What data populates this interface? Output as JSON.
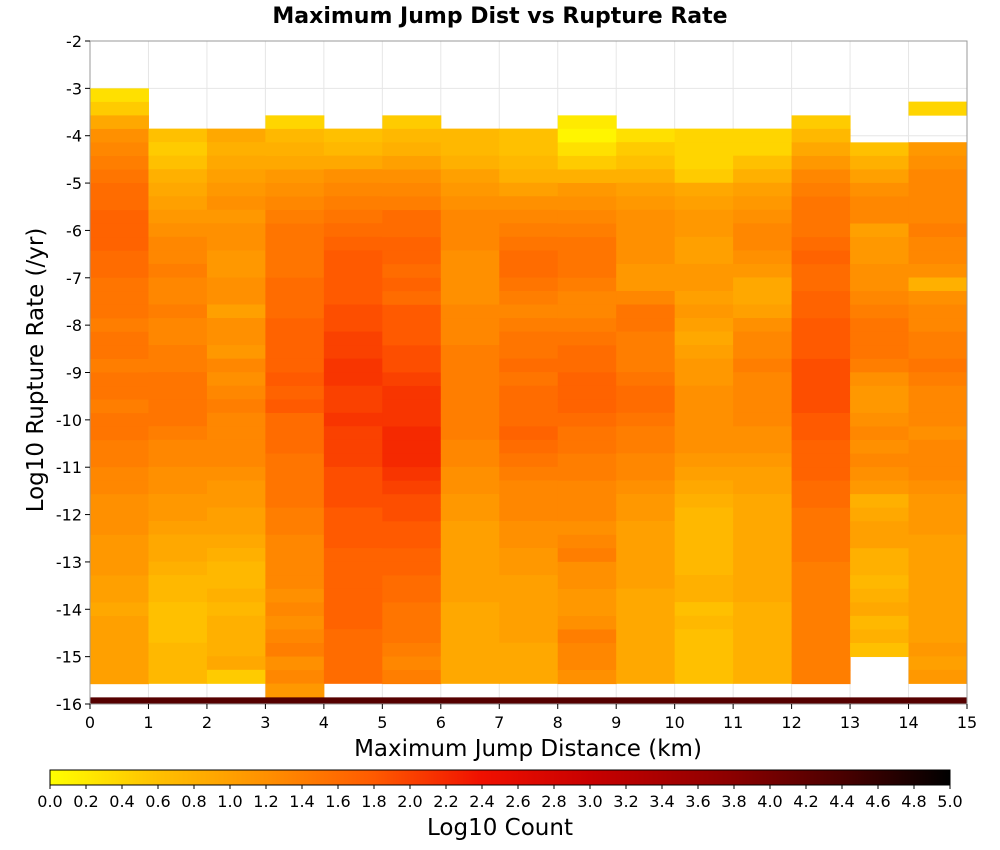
{
  "chart_data": {
    "type": "heatmap",
    "title": "Maximum Jump Dist vs Rupture Rate",
    "xlabel": "Maximum Jump Distance (km)",
    "ylabel": "Log10 Rupture Rate (/yr)",
    "xlim": [
      0,
      15
    ],
    "ylim": [
      -16,
      -2
    ],
    "x_ticks": [
      "0",
      "1",
      "2",
      "3",
      "4",
      "5",
      "6",
      "7",
      "8",
      "9",
      "10",
      "11",
      "12",
      "13",
      "14",
      "15"
    ],
    "y_ticks": [
      "-2",
      "-3",
      "-4",
      "-5",
      "-6",
      "-7",
      "-8",
      "-9",
      "-10",
      "-11",
      "-12",
      "-13",
      "-14",
      "-15",
      "-16"
    ],
    "x_bin_width": 1,
    "y_bin_width": 0.2857,
    "x_bin_starts": [
      0,
      1,
      2,
      3,
      4,
      5,
      6,
      7,
      8,
      9,
      10,
      11,
      12,
      13,
      14
    ],
    "columns": [
      {
        "x": 0,
        "y_top": -3.0,
        "values": [
          0.3,
          0.5,
          0.9,
          1.2,
          1.3,
          1.4,
          1.5,
          1.6,
          1.6,
          1.7,
          1.7,
          1.7,
          1.6,
          1.6,
          1.5,
          1.5,
          1.5,
          1.4,
          1.5,
          1.5,
          1.4,
          1.5,
          1.5,
          1.4,
          1.5,
          1.5,
          1.4,
          1.4,
          1.3,
          1.3,
          1.2,
          1.2,
          1.2,
          1.1,
          1.1,
          1.1,
          1.0,
          1.0,
          0.9,
          1.0,
          1.0,
          1.0,
          1.0,
          1.0
        ]
      },
      {
        "x": 1,
        "y_top": -3.85,
        "values": [
          0.6,
          0.5,
          0.6,
          0.8,
          0.9,
          1.0,
          1.1,
          1.2,
          1.3,
          1.3,
          1.4,
          1.3,
          1.3,
          1.4,
          1.3,
          1.3,
          1.4,
          1.4,
          1.5,
          1.5,
          1.5,
          1.5,
          1.4,
          1.3,
          1.3,
          1.2,
          1.2,
          1.1,
          1.1,
          1.0,
          0.9,
          0.9,
          0.8,
          0.7,
          0.7,
          0.6,
          0.6,
          0.6,
          0.7,
          0.7,
          0.7
        ]
      },
      {
        "x": 2,
        "y_top": -3.85,
        "values": [
          0.9,
          0.8,
          0.9,
          1.0,
          1.1,
          1.2,
          1.1,
          1.2,
          1.2,
          1.1,
          1.1,
          1.2,
          1.2,
          1.0,
          1.2,
          1.2,
          1.1,
          1.3,
          1.2,
          1.3,
          1.4,
          1.3,
          1.3,
          1.3,
          1.3,
          1.2,
          1.1,
          1.1,
          1.0,
          1.0,
          0.9,
          0.8,
          0.7,
          0.7,
          0.8,
          0.7,
          0.8,
          0.8,
          0.8,
          0.9,
          0.5
        ]
      },
      {
        "x": 3,
        "y_top": -3.57,
        "values": [
          0.4,
          0.7,
          0.8,
          0.9,
          1.1,
          1.2,
          1.3,
          1.4,
          1.5,
          1.5,
          1.5,
          1.5,
          1.6,
          1.6,
          1.6,
          1.7,
          1.7,
          1.7,
          1.7,
          1.8,
          1.7,
          1.8,
          1.6,
          1.6,
          1.6,
          1.5,
          1.5,
          1.5,
          1.5,
          1.4,
          1.4,
          1.3,
          1.3,
          1.3,
          1.3,
          1.2,
          1.3,
          1.2,
          1.3,
          1.4,
          1.2,
          1.3,
          1.1
        ]
      },
      {
        "x": 4,
        "y_top": -3.85,
        "values": [
          0.6,
          0.7,
          0.9,
          1.2,
          1.3,
          1.4,
          1.5,
          1.6,
          1.7,
          1.8,
          1.8,
          1.8,
          1.8,
          1.9,
          1.9,
          2.0,
          2.0,
          2.1,
          2.1,
          2.0,
          2.0,
          2.1,
          2.0,
          2.0,
          2.0,
          1.9,
          1.9,
          1.9,
          1.8,
          1.8,
          1.8,
          1.7,
          1.7,
          1.7,
          1.7,
          1.7,
          1.7,
          1.6,
          1.6,
          1.6,
          1.6
        ]
      },
      {
        "x": 5,
        "y_top": -3.57,
        "values": [
          0.5,
          0.7,
          0.8,
          1.0,
          1.2,
          1.3,
          1.4,
          1.6,
          1.6,
          1.7,
          1.7,
          1.6,
          1.7,
          1.6,
          1.8,
          1.8,
          1.8,
          1.9,
          1.9,
          2.0,
          2.1,
          2.1,
          2.1,
          2.2,
          2.2,
          2.2,
          2.1,
          2.0,
          1.9,
          1.9,
          1.8,
          1.8,
          1.7,
          1.7,
          1.6,
          1.6,
          1.5,
          1.5,
          1.5,
          1.4,
          1.3,
          1.4
        ]
      },
      {
        "x": 6,
        "y_top": -3.85,
        "values": [
          0.7,
          0.7,
          0.8,
          1.0,
          1.1,
          1.2,
          1.3,
          1.3,
          1.3,
          1.2,
          1.2,
          1.2,
          1.2,
          1.3,
          1.3,
          1.3,
          1.4,
          1.4,
          1.4,
          1.4,
          1.4,
          1.4,
          1.4,
          1.3,
          1.3,
          1.2,
          1.2,
          1.1,
          1.1,
          1.0,
          1.0,
          1.0,
          1.0,
          1.0,
          1.0,
          0.9,
          0.9,
          0.9,
          0.9,
          0.9,
          0.9
        ]
      },
      {
        "x": 7,
        "y_top": -3.85,
        "values": [
          0.6,
          0.6,
          0.7,
          0.8,
          1.0,
          1.2,
          1.3,
          1.4,
          1.5,
          1.6,
          1.6,
          1.5,
          1.4,
          1.3,
          1.4,
          1.5,
          1.5,
          1.6,
          1.5,
          1.6,
          1.6,
          1.6,
          1.7,
          1.6,
          1.5,
          1.4,
          1.3,
          1.3,
          1.3,
          1.2,
          1.2,
          1.1,
          1.1,
          1.0,
          1.0,
          1.0,
          1.0,
          1.0,
          0.9,
          0.9,
          0.9
        ]
      },
      {
        "x": 8,
        "y_top": -3.57,
        "values": [
          0.2,
          0.1,
          0.3,
          0.5,
          0.8,
          1.1,
          1.2,
          1.3,
          1.4,
          1.5,
          1.5,
          1.5,
          1.4,
          1.3,
          1.3,
          1.4,
          1.5,
          1.6,
          1.6,
          1.7,
          1.7,
          1.7,
          1.6,
          1.5,
          1.5,
          1.4,
          1.4,
          1.3,
          1.3,
          1.3,
          1.2,
          1.3,
          1.4,
          1.2,
          1.2,
          1.1,
          1.1,
          1.2,
          1.4,
          1.3,
          1.3,
          1.2
        ]
      },
      {
        "x": 9,
        "y_top": -3.85,
        "values": [
          0.3,
          0.5,
          0.6,
          0.8,
          1.0,
          1.1,
          1.2,
          1.2,
          1.2,
          1.2,
          1.1,
          1.1,
          1.3,
          1.5,
          1.5,
          1.4,
          1.4,
          1.4,
          1.5,
          1.6,
          1.6,
          1.5,
          1.4,
          1.4,
          1.3,
          1.3,
          1.2,
          1.1,
          1.1,
          1.0,
          1.0,
          1.0,
          1.0,
          1.0,
          0.9,
          0.9,
          0.9,
          0.9,
          0.9,
          0.9,
          0.9
        ]
      },
      {
        "x": 10,
        "y_top": -3.85,
        "values": [
          0.4,
          0.4,
          0.4,
          0.5,
          0.9,
          1.0,
          1.1,
          1.1,
          1.0,
          1.0,
          1.1,
          1.1,
          1.0,
          1.1,
          1.0,
          0.9,
          1.0,
          1.1,
          1.1,
          1.2,
          1.2,
          1.2,
          1.2,
          1.2,
          1.1,
          1.0,
          0.9,
          0.8,
          0.7,
          0.7,
          0.7,
          0.7,
          0.7,
          0.8,
          0.8,
          0.6,
          0.7,
          0.6,
          0.6,
          0.6,
          0.6
        ]
      },
      {
        "x": 11,
        "y_top": -3.85,
        "values": [
          0.4,
          0.4,
          0.6,
          0.8,
          1.0,
          1.1,
          1.2,
          1.3,
          1.3,
          1.2,
          1.1,
          0.9,
          0.9,
          1.0,
          1.2,
          1.3,
          1.3,
          1.4,
          1.3,
          1.3,
          1.3,
          1.3,
          1.2,
          1.2,
          1.1,
          1.0,
          1.0,
          0.9,
          0.9,
          0.9,
          0.9,
          0.9,
          0.9,
          0.9,
          0.9,
          0.8,
          0.8,
          0.8,
          0.8,
          0.8,
          0.8
        ]
      },
      {
        "x": 12,
        "y_top": -3.57,
        "values": [
          0.5,
          0.7,
          0.9,
          1.1,
          1.3,
          1.4,
          1.5,
          1.5,
          1.5,
          1.6,
          1.7,
          1.6,
          1.6,
          1.7,
          1.7,
          1.8,
          1.8,
          1.8,
          1.9,
          1.9,
          1.9,
          1.9,
          1.8,
          1.8,
          1.7,
          1.7,
          1.7,
          1.6,
          1.6,
          1.5,
          1.5,
          1.5,
          1.5,
          1.4,
          1.4,
          1.4,
          1.4,
          1.4,
          1.4,
          1.4,
          1.4,
          1.4
        ]
      },
      {
        "x": 13,
        "y_top": -4.14,
        "values": [
          0.6,
          0.8,
          1.0,
          1.2,
          1.3,
          1.3,
          1.0,
          1.1,
          1.1,
          1.2,
          1.2,
          1.3,
          1.4,
          1.5,
          1.5,
          1.5,
          1.4,
          1.2,
          1.1,
          1.1,
          1.2,
          1.3,
          1.2,
          1.3,
          1.2,
          1.1,
          0.8,
          0.9,
          1.0,
          1.0,
          0.8,
          0.8,
          0.7,
          0.8,
          0.9,
          0.7,
          0.8,
          0.6
        ]
      },
      {
        "x": 14,
        "y_top": -3.28,
        "values": [
          0.4,
          null,
          null,
          1.1,
          1.2,
          1.3,
          1.3,
          1.3,
          1.3,
          1.4,
          1.3,
          1.3,
          1.2,
          0.8,
          1.2,
          1.3,
          1.3,
          1.4,
          1.4,
          1.5,
          1.4,
          1.3,
          1.3,
          1.3,
          1.2,
          1.3,
          1.3,
          1.3,
          1.2,
          1.1,
          1.1,
          1.1,
          1.0,
          1.0,
          1.0,
          1.0,
          1.0,
          1.0,
          1.0,
          1.0,
          1.1,
          1.0,
          1.1
        ]
      }
    ],
    "bottom_row": {
      "y_range": [
        -16,
        -15.86
      ],
      "value": 4.3
    },
    "colorbar": {
      "label": "Log10 Count",
      "min": 0.0,
      "max": 5.0,
      "ticks": [
        "0.0",
        "0.2",
        "0.4",
        "0.6",
        "0.8",
        "1.0",
        "1.2",
        "1.4",
        "1.6",
        "1.8",
        "2.0",
        "2.2",
        "2.4",
        "2.6",
        "2.8",
        "3.0",
        "3.2",
        "3.4",
        "3.6",
        "3.8",
        "4.0",
        "4.2",
        "4.4",
        "4.6",
        "4.8",
        "5.0"
      ],
      "stops": [
        {
          "v": 0.0,
          "color": "#ffff00"
        },
        {
          "v": 0.6,
          "color": "#ffc000"
        },
        {
          "v": 1.2,
          "color": "#ff9000"
        },
        {
          "v": 1.8,
          "color": "#ff5a00"
        },
        {
          "v": 2.4,
          "color": "#f01000"
        },
        {
          "v": 3.0,
          "color": "#c80000"
        },
        {
          "v": 3.8,
          "color": "#8a0000"
        },
        {
          "v": 4.4,
          "color": "#4a0000"
        },
        {
          "v": 5.0,
          "color": "#000000"
        }
      ]
    },
    "grid": true
  }
}
